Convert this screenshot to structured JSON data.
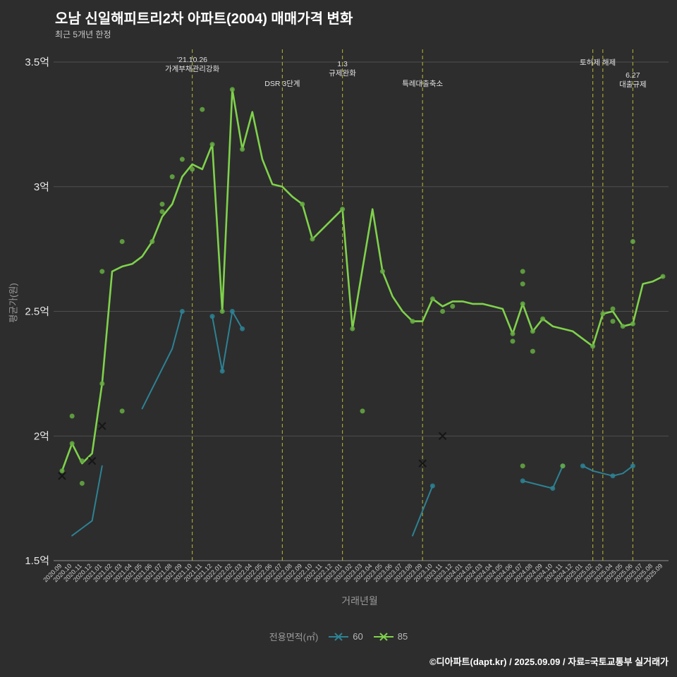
{
  "footer": {
    "credit": "©디아파트(dapt.kr) / 2025.09.09 / 자료=국토교통부 실거래가"
  },
  "chart_data": {
    "type": "line",
    "title": "오남 신일해피트리2차 아파트(2004) 매매가격 변화",
    "subtitle": "최근 5개년 한정",
    "xlabel": "거래년월",
    "ylabel": "평균가(원)",
    "legend_title": "전용면적(㎡)",
    "ylim": [
      1.5,
      3.5
    ],
    "y_ticks": [
      1.5,
      2.0,
      2.5,
      3.0,
      3.5
    ],
    "y_tick_labels": [
      "1.5억",
      "2억",
      "2.5억",
      "3억",
      "3.5억"
    ],
    "annotation_color": "#a3a332",
    "x": [
      "2020.09",
      "2020.10",
      "2020.11",
      "2020.12",
      "2021.01",
      "2021.02",
      "2021.03",
      "2021.04",
      "2021.05",
      "2021.06",
      "2021.07",
      "2021.08",
      "2021.09",
      "2021.10",
      "2021.11",
      "2021.12",
      "2022.01",
      "2022.02",
      "2022.03",
      "2022.04",
      "2022.05",
      "2022.06",
      "2022.07",
      "2022.08",
      "2022.09",
      "2022.10",
      "2022.11",
      "2022.12",
      "2023.01",
      "2023.02",
      "2023.03",
      "2023.04",
      "2023.05",
      "2023.06",
      "2023.07",
      "2023.08",
      "2023.09",
      "2023.10",
      "2023.11",
      "2023.12",
      "2024.01",
      "2024.02",
      "2024.03",
      "2024.04",
      "2024.05",
      "2024.06",
      "2024.07",
      "2024.08",
      "2024.09",
      "2024.10",
      "2024.11",
      "2024.12",
      "2025.01",
      "2025.02",
      "2025.03",
      "2025.04",
      "2025.05",
      "2025.06",
      "2025.07",
      "2025.08",
      "2025.09"
    ],
    "series": [
      {
        "name": "60",
        "color": "#2d8294",
        "dot_color": "#2d8294",
        "width": 2,
        "values": [
          null,
          1.6,
          1.63,
          1.66,
          1.88,
          null,
          null,
          null,
          2.11,
          2.19,
          2.27,
          2.35,
          2.5,
          null,
          null,
          2.48,
          2.26,
          2.5,
          2.43,
          null,
          null,
          null,
          null,
          null,
          null,
          null,
          null,
          null,
          null,
          null,
          null,
          null,
          null,
          null,
          null,
          1.6,
          1.7,
          1.8,
          null,
          null,
          null,
          null,
          null,
          null,
          null,
          null,
          1.82,
          1.81,
          1.8,
          1.79,
          1.88,
          null,
          1.88,
          1.86,
          1.85,
          1.84,
          1.85,
          1.88,
          null,
          null,
          null
        ]
      },
      {
        "name": "85",
        "color": "#7fd24b",
        "dot_color": "#66ad42",
        "width": 2.6,
        "values": [
          1.86,
          1.97,
          1.89,
          1.93,
          2.21,
          2.66,
          2.68,
          2.69,
          2.72,
          2.78,
          2.88,
          2.93,
          3.04,
          3.09,
          3.07,
          3.17,
          2.5,
          3.39,
          3.15,
          3.3,
          3.11,
          3.01,
          3.0,
          2.96,
          2.93,
          2.79,
          2.83,
          2.87,
          2.91,
          2.43,
          2.67,
          2.91,
          2.66,
          2.56,
          2.5,
          2.46,
          2.46,
          2.55,
          2.52,
          2.54,
          2.54,
          2.53,
          2.53,
          2.52,
          2.51,
          2.41,
          2.53,
          2.42,
          2.47,
          2.44,
          2.43,
          2.42,
          2.39,
          2.36,
          2.49,
          2.5,
          2.44,
          2.45,
          2.61,
          2.62,
          2.64
        ]
      }
    ],
    "scatter": [
      {
        "series": "60",
        "points": [
          [
            12,
            2.5
          ],
          [
            15,
            2.48
          ],
          [
            16,
            2.26
          ],
          [
            17,
            2.5
          ],
          [
            18,
            2.43
          ],
          [
            37,
            1.8
          ],
          [
            46,
            1.82
          ],
          [
            49,
            1.79
          ],
          [
            50,
            1.88
          ],
          [
            52,
            1.88
          ],
          [
            55,
            1.84
          ],
          [
            57,
            1.88
          ]
        ]
      },
      {
        "series": "85",
        "points": [
          [
            0,
            1.86
          ],
          [
            1,
            2.08
          ],
          [
            1,
            1.97
          ],
          [
            2,
            1.9
          ],
          [
            2,
            1.81
          ],
          [
            4,
            2.21
          ],
          [
            4,
            2.66
          ],
          [
            6,
            2.78
          ],
          [
            6,
            2.1
          ],
          [
            9,
            2.78
          ],
          [
            10,
            2.93
          ],
          [
            10,
            2.9
          ],
          [
            11,
            3.04
          ],
          [
            12,
            3.11
          ],
          [
            13,
            3.07
          ],
          [
            14,
            3.31
          ],
          [
            15,
            3.17
          ],
          [
            16,
            2.5
          ],
          [
            17,
            3.39
          ],
          [
            18,
            3.15
          ],
          [
            24,
            2.93
          ],
          [
            25,
            2.79
          ],
          [
            28,
            2.91
          ],
          [
            29,
            2.43
          ],
          [
            30,
            2.1
          ],
          [
            32,
            2.66
          ],
          [
            35,
            2.46
          ],
          [
            37,
            2.55
          ],
          [
            38,
            2.5
          ],
          [
            39,
            2.52
          ],
          [
            45,
            2.41
          ],
          [
            45,
            2.38
          ],
          [
            46,
            2.66
          ],
          [
            46,
            2.61
          ],
          [
            46,
            2.53
          ],
          [
            46,
            1.88
          ],
          [
            47,
            2.42
          ],
          [
            47,
            2.34
          ],
          [
            48,
            2.47
          ],
          [
            50,
            1.88
          ],
          [
            53,
            2.36
          ],
          [
            54,
            2.49
          ],
          [
            55,
            2.51
          ],
          [
            55,
            2.46
          ],
          [
            56,
            2.44
          ],
          [
            57,
            2.78
          ],
          [
            57,
            2.45
          ],
          [
            60,
            2.64
          ]
        ]
      }
    ],
    "x_markers": [
      {
        "series": "85",
        "i": 0,
        "v": 1.84
      },
      {
        "series": "85",
        "i": 3,
        "v": 1.9
      },
      {
        "series": "60",
        "i": 4,
        "v": 2.04
      },
      {
        "series": "85",
        "i": 36,
        "v": 1.89
      },
      {
        "series": "60",
        "i": 38,
        "v": 2.0
      }
    ],
    "annotation_lines": [
      "2021.10",
      "2022.07",
      "2023.01",
      "2023.09",
      "2025.02",
      "2025.03",
      "2025.06"
    ],
    "annotations": [
      {
        "month": "2021.10",
        "lines": [
          "'21.10.26",
          "가계부채관리강화"
        ],
        "ty": 88,
        "dx": 0
      },
      {
        "month": "2022.07",
        "lines": [
          "DSR 3단계"
        ],
        "ty": 122,
        "dx": 0
      },
      {
        "month": "2023.01",
        "lines": [
          "1.3",
          "규제완화"
        ],
        "ty": 94,
        "dx": 0
      },
      {
        "month": "2023.09",
        "lines": [
          "특례대출축소"
        ],
        "ty": 122,
        "dx": 0
      },
      {
        "month": "2025.02",
        "lines": [
          "토허제 해제"
        ],
        "ty": 92,
        "dx": 7
      },
      {
        "month": "2025.06",
        "lines": [
          "6.27",
          "대출규제"
        ],
        "ty": 110,
        "dx": 0
      }
    ]
  }
}
